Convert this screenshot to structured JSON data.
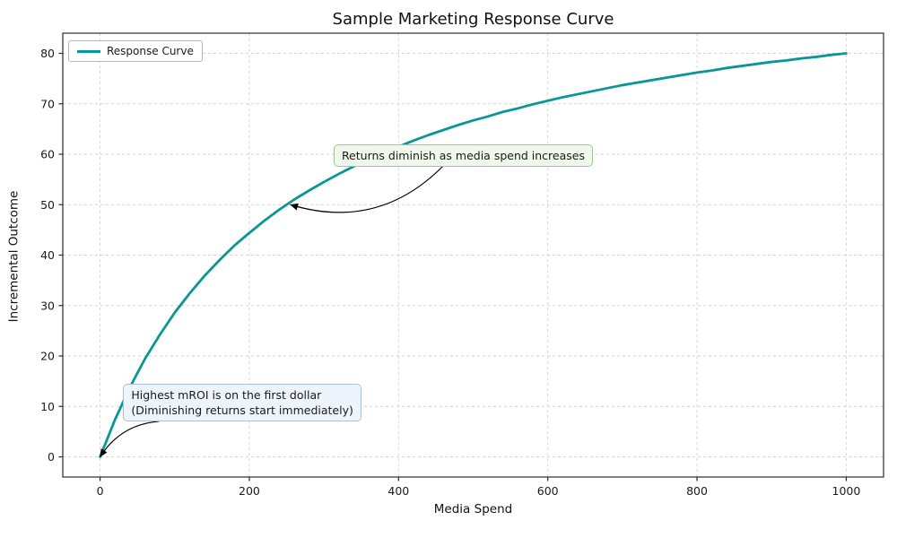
{
  "chart_data": {
    "type": "line",
    "title": "Sample Marketing Response Curve",
    "xlabel": "Media Spend",
    "ylabel": "Incremental Outcome",
    "xlim": [
      -50,
      1050
    ],
    "ylim": [
      -4,
      84
    ],
    "xticks": [
      0,
      200,
      400,
      600,
      800,
      1000
    ],
    "yticks": [
      0,
      10,
      20,
      30,
      40,
      50,
      60,
      70,
      80
    ],
    "grid": true,
    "grid_color": "#d2d2d2",
    "frame_color": "#2b2b2b",
    "legend": {
      "position": "upper left",
      "entries": [
        {
          "label": "Response Curve",
          "color": "#0a9696"
        }
      ]
    },
    "series": [
      {
        "name": "Response Curve",
        "color": "#0a9696",
        "line_width": 2.8,
        "x": [
          0,
          20,
          40,
          60,
          80,
          100,
          120,
          140,
          160,
          180,
          200,
          220,
          240,
          260,
          280,
          300,
          320,
          340,
          360,
          380,
          400,
          420,
          440,
          460,
          480,
          500,
          520,
          540,
          560,
          580,
          600,
          620,
          640,
          660,
          680,
          700,
          720,
          740,
          760,
          780,
          800,
          820,
          840,
          860,
          880,
          900,
          920,
          940,
          960,
          980,
          1000
        ],
        "y": [
          0,
          7.4,
          13.8,
          19.4,
          24.2,
          28.6,
          32.4,
          35.9,
          39.0,
          41.9,
          44.4,
          46.8,
          49.0,
          51.0,
          52.8,
          54.5,
          56.1,
          57.6,
          59.0,
          60.3,
          61.5,
          62.7,
          63.8,
          64.8,
          65.8,
          66.7,
          67.5,
          68.4,
          69.1,
          69.9,
          70.6,
          71.3,
          71.9,
          72.5,
          73.1,
          73.7,
          74.2,
          74.7,
          75.2,
          75.7,
          76.2,
          76.6,
          77.1,
          77.5,
          77.9,
          78.3,
          78.6,
          79.0,
          79.3,
          79.7,
          80.0
        ]
      }
    ],
    "annotations": [
      {
        "name": "diminishing-returns",
        "text": "Returns diminish as media spend increases",
        "xy": [
          255,
          50
        ],
        "xytext": [
          313,
          62
        ],
        "box_fill": "#eff8ea",
        "box_border": "#a3c493",
        "arrow_color": "#000000",
        "arrow_rad": 0.3,
        "arrow_start": [
          0.42,
          1.0
        ]
      },
      {
        "name": "highest-mroi",
        "lines": [
          "Highest mROI is on the first dollar",
          "(Diminishing returns start immediately)"
        ],
        "xy": [
          0,
          0
        ],
        "xytext": [
          31,
          14.5
        ],
        "box_fill": "#edf4fc",
        "box_border": "#a9c2dc",
        "arrow_color": "#000000",
        "arrow_rad": -0.25,
        "arrow_start": [
          0.15,
          1.0
        ]
      }
    ]
  }
}
